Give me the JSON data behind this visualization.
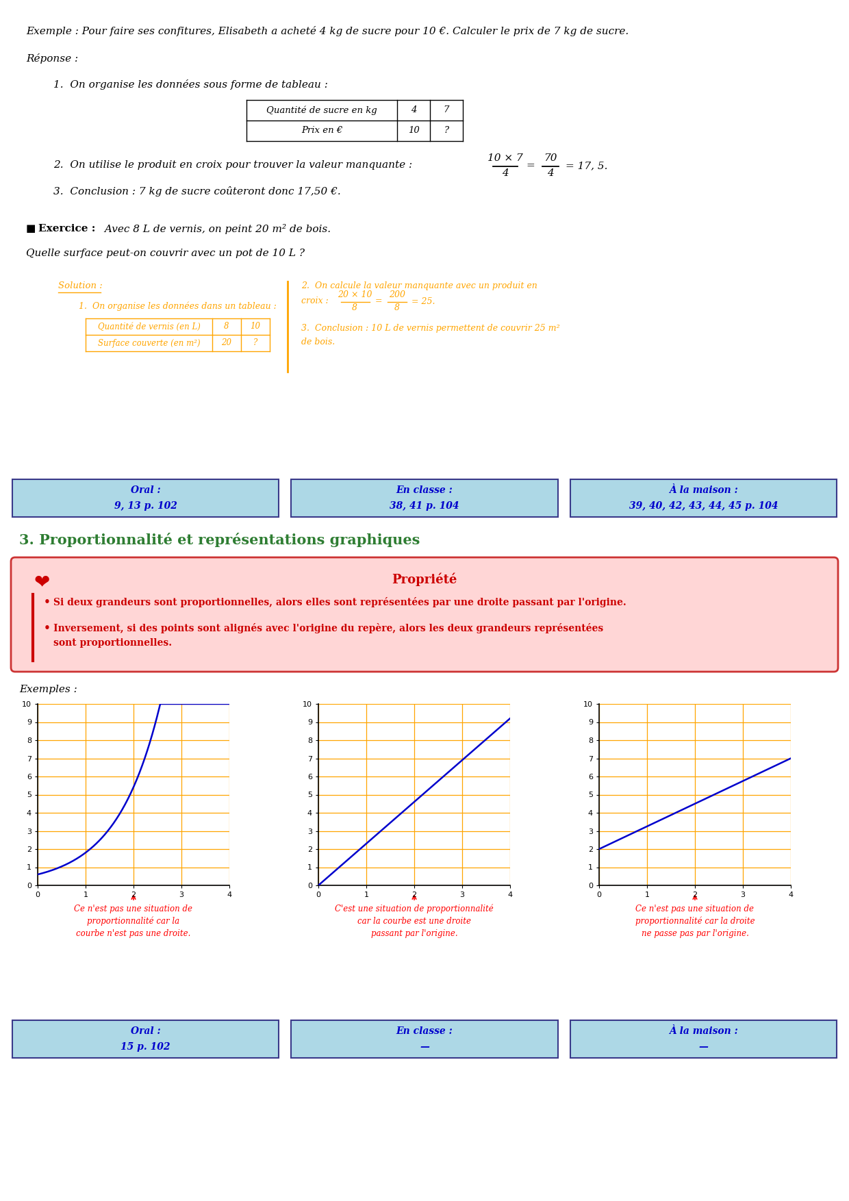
{
  "bg_color": "#ffffff",
  "orange_color": "#FFA500",
  "green_color": "#2e7d32",
  "red_color": "#cc0000",
  "blue_color": "#0000cc",
  "light_blue_bg": "#add8e6",
  "pink_border": "#cc4444",
  "grid_color": "#FFA500",
  "title_section3": "3. Proportionnalité et représentations graphiques",
  "exemple_line": "Exemple : Pour faire ses confitures, Elisabeth a acheté 4 kg de sucre pour 10 €. Calculer le prix de 7 kg de sucre.",
  "reponse": "Réponse :",
  "step1": "1.  On organise les données sous forme de tableau :",
  "step3": "3.  Conclusion : 7 kg de sucre coûteront donc 17,50 €.",
  "exercice_q": "Quelle surface peut-on couvrir avec un pot de 10 L ?",
  "sol_label": "Solution :",
  "sol_step1": "1.  On organise les données dans un tableau :",
  "sol_step2_line1": "2.  On calcule la valeur manquante avec un produit en",
  "sol_step3": "3.  Conclusion : 10 L de vernis permettent de couvrir 25 m²",
  "sol_step3b": "de bois.",
  "box1_oral": "Oral :",
  "box1_val": "9, 13 p. 102",
  "box2_oral": "En classe :",
  "box2_val": "38, 41 p. 104",
  "box3_oral": "À la maison :",
  "box3_val": "39, 40, 42, 43, 44, 45 p. 104",
  "propriete_title": "Propriété",
  "prop_bullet1": "Si deux grandeurs sont proportionnelles, alors elles sont représentées par une droite passant par l'origine.",
  "prop_bullet2a": "Inversement, si des points sont alignés avec l'origine du repère, alors les deux grandeurs représentées",
  "prop_bullet2b": "sont proportionnelles.",
  "exemples_label": "Exemples :",
  "graph1_cap1": "Ce n'est pas une situation de",
  "graph1_cap2": "proportionnalité car la",
  "graph1_cap3": "courbe n'est pas une droite.",
  "graph2_cap1": "C'est une situation de proportionnalité",
  "graph2_cap2": "car la courbe est une droite",
  "graph2_cap3": "passant par l'origine.",
  "graph3_cap1": "Ce n'est pas une situation de",
  "graph3_cap2": "proportionnalité car la droite",
  "graph3_cap3": "ne passe pas par l'origine.",
  "box4_oral": "Oral :",
  "box4_val": "15 p. 102",
  "box5_oral": "En classe :",
  "box5_val": "—",
  "box6_oral": "À la maison :",
  "box6_val": "—"
}
